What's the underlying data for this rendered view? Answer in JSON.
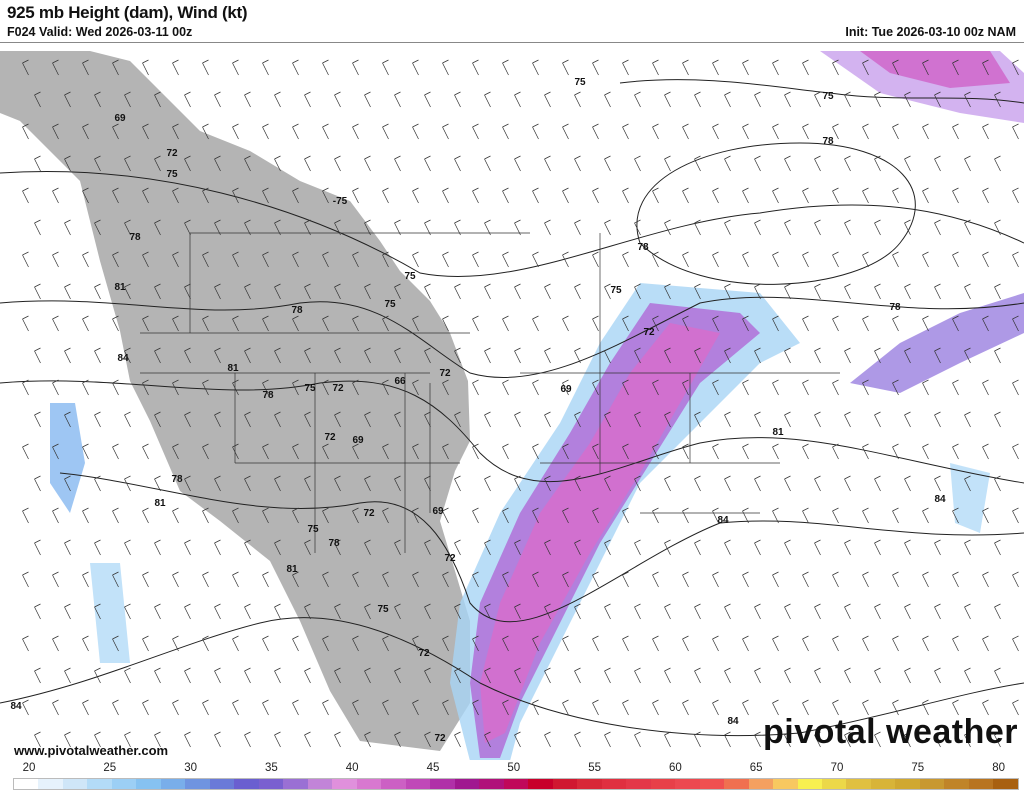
{
  "header": {
    "title": "925 mb Height (dam), Wind (kt)",
    "valid": "F024 Valid: Wed 2026-03-11 00z",
    "init": "Init: Tue 2026-03-10 00z NAM"
  },
  "footer": {
    "url": "www.pivotalweather.com",
    "logo": "pivotal weather"
  },
  "colorbar": {
    "unit": "kt",
    "min": 20,
    "max": 80,
    "ticks": [
      "20",
      "25",
      "30",
      "35",
      "40",
      "45",
      "50",
      "55",
      "60",
      "65",
      "70",
      "75",
      "80"
    ],
    "colors": [
      "#ffffff",
      "#e6f2fc",
      "#cfe6f8",
      "#b3dbf7",
      "#9ccff5",
      "#86c2f1",
      "#79aeea",
      "#6f94e0",
      "#6a7ad8",
      "#6a5fd0",
      "#7a60d0",
      "#9a70d4",
      "#c284d8",
      "#e090dc",
      "#d878d0",
      "#cc60c4",
      "#c048b8",
      "#b030a8",
      "#a01890",
      "#b0107a",
      "#c0085a",
      "#c8002a",
      "#d01830",
      "#d82838",
      "#e03040",
      "#e43848",
      "#e84048",
      "#ec4850",
      "#f05050",
      "#f07050",
      "#f4a060",
      "#f8c860",
      "#f8f050",
      "#ecd848",
      "#e0c040",
      "#d8b438",
      "#d0a830",
      "#c89830",
      "#c08428",
      "#b87420",
      "#a86010"
    ],
    "terrain": "#b4b4b4"
  },
  "contour_labels": [
    "69",
    "72",
    "75",
    "-75",
    "78",
    "81",
    "84",
    "75",
    "75",
    "78",
    "81",
    "78",
    "75",
    "72",
    "66",
    "72",
    "72",
    "69",
    "78",
    "81",
    "75",
    "78",
    "72",
    "81",
    "69",
    "72",
    "75",
    "72",
    "72",
    "75",
    "75",
    "78",
    "78",
    "75",
    "72",
    "69",
    "78",
    "81",
    "84",
    "84",
    "84",
    "84"
  ]
}
